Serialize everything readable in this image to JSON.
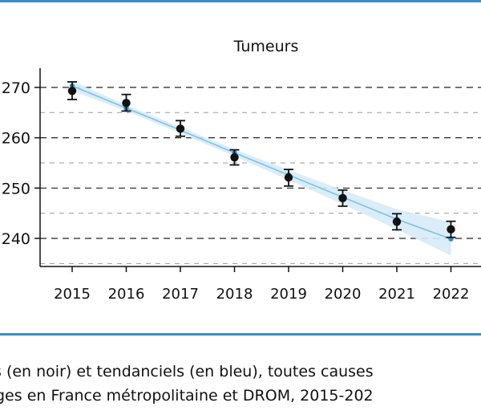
{
  "colors": {
    "accent": "#3a8fc8",
    "trend_line": "#7cc3e4",
    "confidence_band": "#d6ebf7",
    "observed_points": "#111111",
    "grid": "#222222"
  },
  "caption": {
    "line1": "s (en noir) et tendanciels (en bleu), toutes causes",
    "line2": "ges en France métropolitaine et DROM, 2015-202"
  },
  "chart_data": {
    "type": "line",
    "title": "Tumeurs",
    "xlabel": "",
    "ylabel": "",
    "x": [
      2015,
      2016,
      2017,
      2018,
      2019,
      2020,
      2021,
      2022
    ],
    "x_tick_labels": [
      "2015",
      "2016",
      "2017",
      "2018",
      "2019",
      "2020",
      "2021",
      "2022"
    ],
    "y_tick_values": [
      240,
      250,
      260,
      270
    ],
    "y_tick_labels": [
      "240",
      "250",
      "260",
      "270"
    ],
    "ylim": [
      234.5,
      273.5
    ],
    "grid": "horizontal dashed",
    "series": [
      {
        "kind": "observed",
        "color": "#111111",
        "values": [
          269.3,
          266.9,
          261.8,
          256.1,
          252.1,
          248.0,
          243.3,
          241.8
        ],
        "error_low": [
          267.6,
          265.3,
          260.3,
          254.6,
          250.4,
          246.4,
          241.7,
          240.2
        ],
        "error_high": [
          271.1,
          268.6,
          263.4,
          257.6,
          253.7,
          249.6,
          244.9,
          243.4
        ]
      },
      {
        "kind": "trend",
        "color": "#7cc3e4",
        "values": [
          270.3,
          265.9,
          261.5,
          257.0,
          252.6,
          248.2,
          243.8,
          239.9
        ],
        "band_low": [
          269.3,
          265.3,
          260.9,
          256.3,
          251.6,
          246.8,
          241.8,
          236.6
        ],
        "band_high": [
          271.3,
          266.5,
          262.1,
          257.7,
          253.6,
          249.6,
          245.8,
          243.2
        ]
      }
    ]
  }
}
